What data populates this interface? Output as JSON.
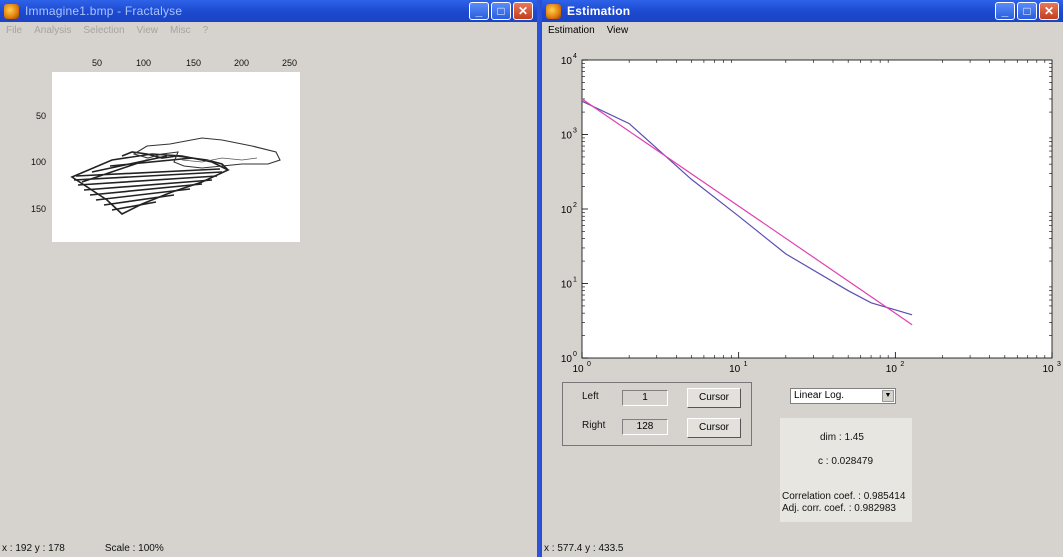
{
  "left_window": {
    "title": "Immagine1.bmp - Fractalyse",
    "menu": [
      "File",
      "Analysis",
      "Selection",
      "View",
      "Misc",
      "?"
    ],
    "x_ticks": [
      "50",
      "100",
      "150",
      "200",
      "250"
    ],
    "y_ticks": [
      "50",
      "100",
      "150"
    ],
    "status_coords": "x : 192  y : 178",
    "status_scale": "Scale : 100%"
  },
  "right_window": {
    "title": "Estimation",
    "menu": [
      "Estimation",
      "View"
    ],
    "status_coords": "x : 577.4  y : 433.5",
    "controls": {
      "left_label": "Left",
      "left_value": "1",
      "right_label": "Right",
      "right_value": "128",
      "cursor_label": "Cursor",
      "scale_select": "Linear Log."
    },
    "results": {
      "dim": "dim : 1.45",
      "c": "c : 0.028479",
      "corr": "Correlation coef. : 0.985414",
      "adj_corr": "Adj. corr. coef. : 0.982983"
    }
  },
  "chart_data": {
    "type": "line",
    "x_scale": "log",
    "y_scale": "log",
    "xlim": [
      1,
      1000
    ],
    "ylim": [
      1,
      10000
    ],
    "x_tick_labels": [
      "10^0",
      "10^1",
      "10^2",
      "10^3"
    ],
    "y_tick_labels": [
      "10^0",
      "10^1",
      "10^2",
      "10^3",
      "10^4"
    ],
    "series": [
      {
        "color": "#5a4fb0",
        "x": [
          1,
          2,
          5,
          10,
          20,
          50,
          70,
          128
        ],
        "y": [
          2800,
          1400,
          250,
          80,
          25,
          8,
          5.5,
          3.8
        ]
      },
      {
        "color": "#e040b0",
        "x": [
          1,
          128
        ],
        "y": [
          3000,
          2.8
        ]
      }
    ]
  }
}
